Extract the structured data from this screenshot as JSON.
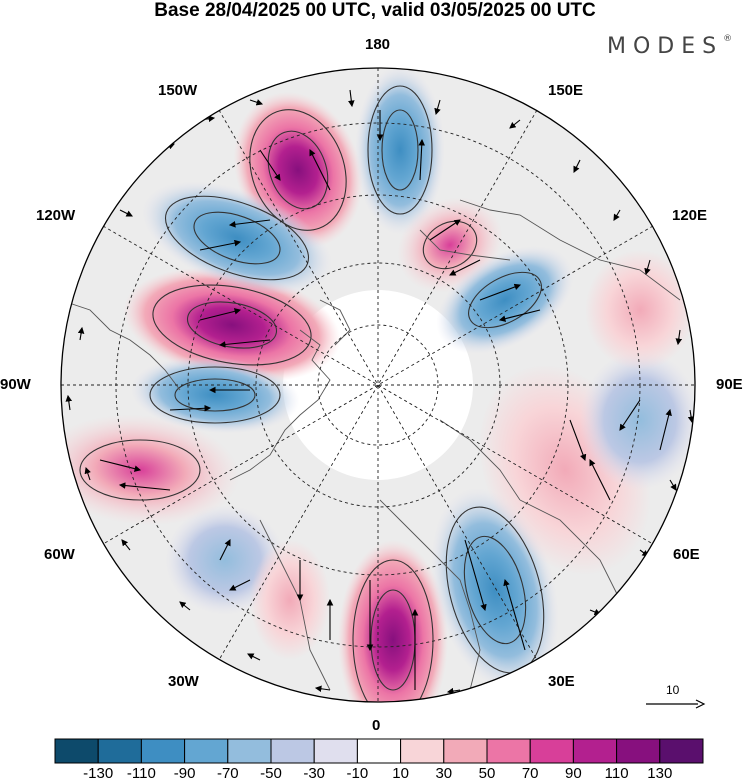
{
  "title": "Base 28/04/2025 00 UTC, valid 03/05/2025 00 UTC",
  "logo": "MODES",
  "logo_mark": "®",
  "longitude_labels": {
    "n180": "180",
    "e150": "150E",
    "e120": "120E",
    "e90": "90E",
    "e60": "60E",
    "e30": "30E",
    "n0": "0",
    "w30": "30W",
    "w60": "60W",
    "w90": "90W",
    "w120": "120W",
    "w150": "150W"
  },
  "reference_vector": {
    "label": "10"
  },
  "colorbar": {
    "tick_labels": [
      "-130",
      "-110",
      "-90",
      "-70",
      "-50",
      "-30",
      "-10",
      "10",
      "30",
      "50",
      "70",
      "90",
      "110",
      "130"
    ],
    "colors": [
      "#0d4a6b",
      "#1f6c9a",
      "#3e8ec2",
      "#63a6d2",
      "#93bddd",
      "#bcc8e4",
      "#e0dfee",
      "#ffffff",
      "#f8d5d8",
      "#f2aab8",
      "#ec75a6",
      "#d83f99",
      "#b3208f",
      "#87107e",
      "#5a0f6d"
    ]
  },
  "anomaly_centers": [
    {
      "sign": "positive",
      "level": "high"
    },
    {
      "sign": "negative",
      "level": "moderate"
    },
    {
      "sign": "positive",
      "level": "moderate"
    },
    {
      "sign": "negative",
      "level": "moderate"
    },
    {
      "sign": "positive",
      "level": "high"
    },
    {
      "sign": "negative",
      "level": "moderate"
    },
    {
      "sign": "positive",
      "level": "moderate"
    },
    {
      "sign": "negative",
      "level": "moderate"
    },
    {
      "sign": "positive",
      "level": "high"
    },
    {
      "sign": "negative",
      "level": "moderate"
    },
    {
      "sign": "positive",
      "level": "low"
    },
    {
      "sign": "negative",
      "level": "low"
    }
  ]
}
